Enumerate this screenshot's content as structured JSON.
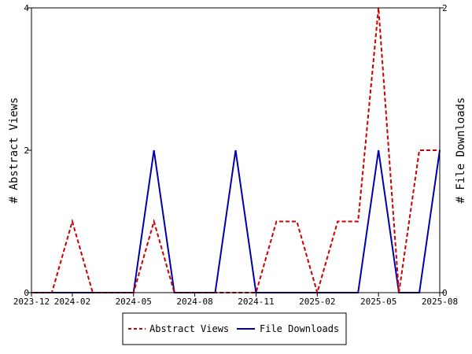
{
  "chart_data": {
    "type": "line",
    "title": "",
    "xlabel": "",
    "ylabel_left": "# Abstract Views",
    "ylabel_right": "# File Downloads",
    "x_ticks": [
      "2023-12",
      "2024-02",
      "2024-05",
      "2024-08",
      "2024-11",
      "2025-02",
      "2025-05",
      "2025-08"
    ],
    "x": [
      "2023-12",
      "2024-01",
      "2024-02",
      "2024-03",
      "2024-04",
      "2024-05",
      "2024-06",
      "2024-07",
      "2024-08",
      "2024-09",
      "2024-10",
      "2024-11",
      "2024-12",
      "2025-01",
      "2025-02",
      "2025-03",
      "2025-04",
      "2025-05",
      "2025-06",
      "2025-07",
      "2025-08"
    ],
    "y_left_ticks": [
      "0",
      "2",
      "4"
    ],
    "y_right_ticks": [
      "0",
      "2"
    ],
    "ylim_left": [
      0,
      4
    ],
    "ylim_right": [
      0,
      2
    ],
    "grid": false,
    "legend_position": "bottom",
    "series": [
      {
        "name": "Abstract Views",
        "axis": "left",
        "color": "#cc0000",
        "style": "dashed",
        "values": [
          0,
          0,
          1,
          0,
          0,
          0,
          1,
          0,
          0,
          0,
          0,
          0,
          1,
          1,
          0,
          1,
          1,
          4,
          0,
          2,
          2
        ]
      },
      {
        "name": "File Downloads",
        "axis": "right",
        "color": "#0000aa",
        "style": "solid",
        "values": [
          0,
          0,
          0,
          0,
          0,
          0,
          1,
          0,
          0,
          0,
          1,
          0,
          0,
          0,
          0,
          0,
          0,
          1,
          0,
          0,
          1
        ]
      }
    ]
  }
}
